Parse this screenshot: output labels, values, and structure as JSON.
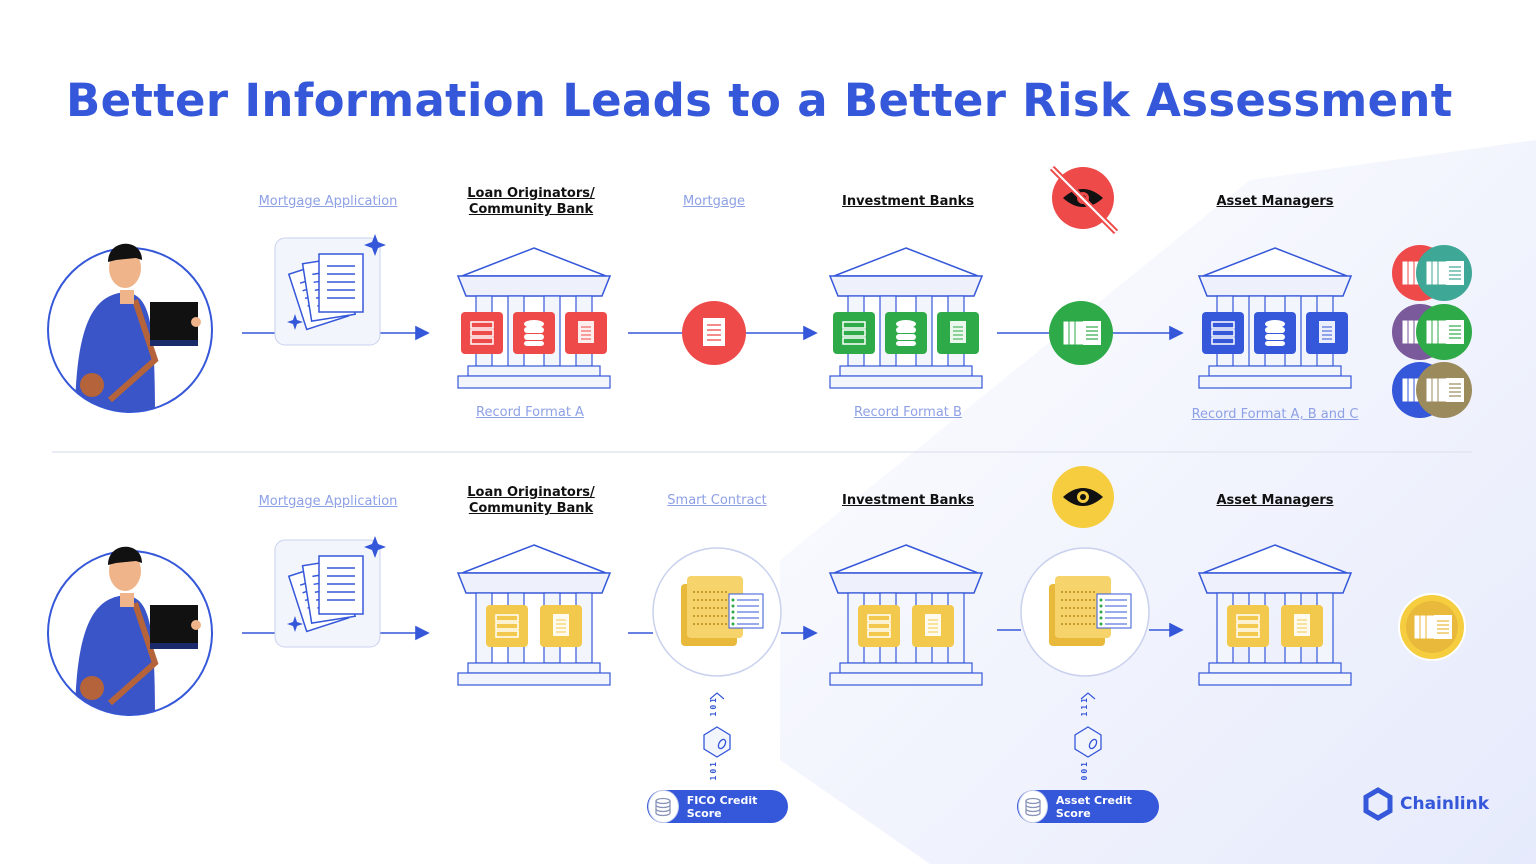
{
  "title": "Better Information Leads to a Better Risk Assessment",
  "colors": {
    "brand": "#3557d9",
    "red": "#ee4a4a",
    "green": "#2eaa48",
    "yellow": "#f2c94c",
    "blue": "#3557d9",
    "teal": "#3fa796",
    "purple": "#7a5a9a",
    "olive": "#9a8a5c"
  },
  "row1": {
    "labels": {
      "mortgage_application": "Mortgage Application",
      "loan_originators_1": "Loan Originators/",
      "loan_originators_2": "Community Bank",
      "mortgage": "Mortgage",
      "investment_banks": "Investment Banks",
      "asset_managers": "Asset Managers",
      "record_a": "Record Format A",
      "record_b": "Record Format B",
      "record_abc": "Record Format A, B and C"
    },
    "icons": [
      "person-icon",
      "documents-icon",
      "bank-red-records-icon",
      "document-red-icon",
      "bank-green-records-icon",
      "eye-off-icon",
      "documents-green-icon",
      "bank-blue-records-icon",
      "stacked-record-circles-icon"
    ]
  },
  "row2": {
    "labels": {
      "mortgage_application": "Mortgage Application",
      "loan_originators_1": "Loan Originators/",
      "loan_originators_2": "Community Bank",
      "smart_contract": "Smart Contract",
      "investment_banks": "Investment Banks",
      "asset_managers": "Asset Managers"
    },
    "oracle1": {
      "top_bits": "101",
      "bottom_bits": "101",
      "source": "FICO Credit Score"
    },
    "oracle2": {
      "top_bits": "111",
      "bottom_bits": "001",
      "source": "Asset Credit Score"
    },
    "icons": [
      "person-icon",
      "documents-icon",
      "bank-yellow-records-icon",
      "smart-contract-icon",
      "eye-icon",
      "chainlink-oracle-icon",
      "database-icon"
    ]
  },
  "logo": {
    "name": "Chainlink"
  }
}
